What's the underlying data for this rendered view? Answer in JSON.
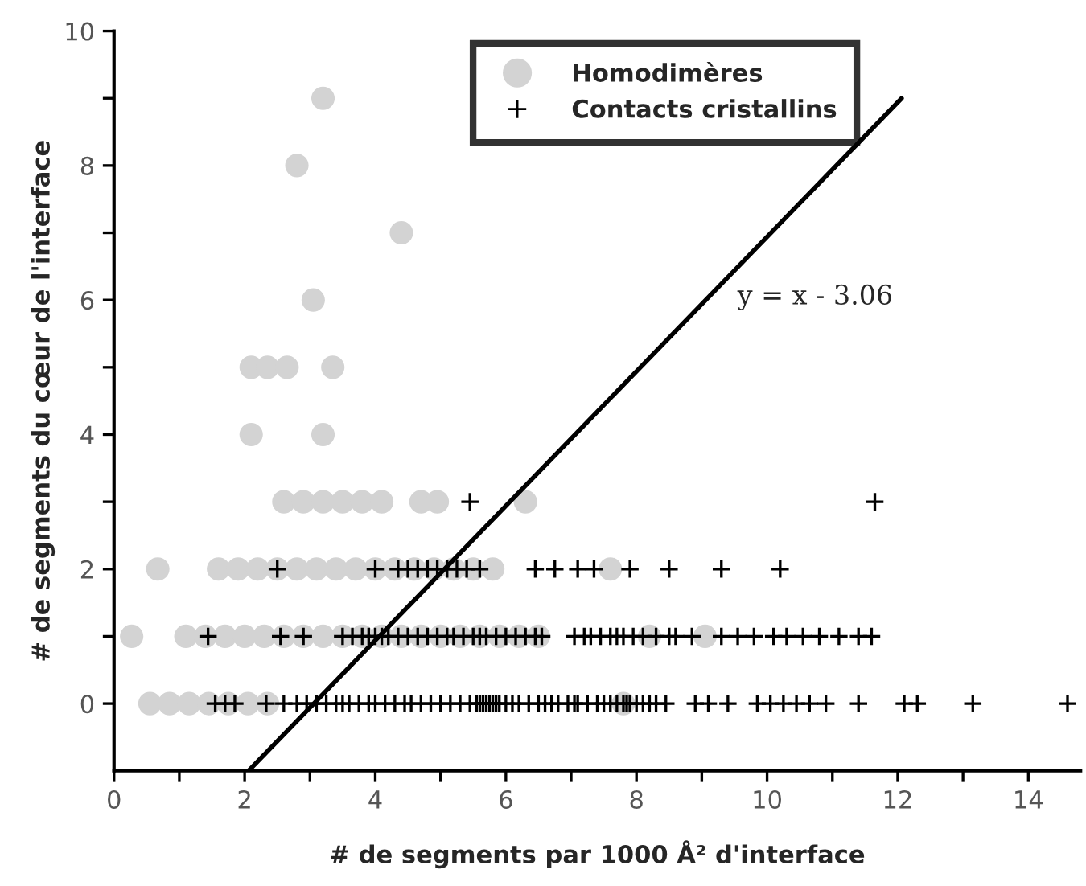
{
  "chart_data": {
    "type": "scatter",
    "xlabel": "# de segments par 1000 Å² d'interface",
    "ylabel": "# de segments du cœur de l'interface",
    "xlim": [
      0,
      14.8
    ],
    "ylim": [
      -1,
      10
    ],
    "xticks": [
      0,
      {
        "value": 1,
        "label": null
      },
      2,
      {
        "value": 3,
        "label": null
      },
      4,
      {
        "value": 5,
        "label": null
      },
      6,
      {
        "value": 7,
        "label": null
      },
      8,
      {
        "value": 9,
        "label": null
      },
      10,
      {
        "value": 11,
        "label": null
      },
      12,
      {
        "value": 13,
        "label": null
      },
      14
    ],
    "yticks": [
      0,
      {
        "value": 1,
        "label": null
      },
      2,
      {
        "value": 3,
        "label": null
      },
      4,
      {
        "value": 5,
        "label": null
      },
      6,
      {
        "value": 7,
        "label": null
      },
      8,
      {
        "value": 9,
        "label": null
      },
      10
    ],
    "grid": false,
    "legend": "top",
    "annotations": [
      "y = x - 3.06"
    ],
    "series": [
      {
        "name": "Homodimères",
        "color": "#d3d3d3",
        "marker": "circle",
        "x": [
          0.55,
          0.85,
          1.15,
          1.45,
          1.75,
          2.05,
          2.35,
          7.8,
          0.27,
          1.1,
          1.4,
          1.7,
          2.0,
          2.3,
          2.6,
          2.9,
          3.2,
          3.5,
          3.8,
          4.1,
          4.4,
          4.7,
          5.0,
          5.3,
          5.6,
          5.9,
          6.2,
          6.5,
          8.2,
          9.05,
          0.67,
          1.6,
          1.9,
          2.2,
          2.5,
          2.8,
          3.1,
          3.4,
          3.7,
          4.0,
          4.3,
          4.6,
          4.9,
          5.2,
          5.5,
          5.8,
          7.6,
          2.6,
          2.9,
          3.2,
          3.5,
          3.8,
          4.1,
          4.7,
          4.95,
          6.3,
          2.1,
          3.2,
          2.1,
          2.35,
          2.65,
          3.35,
          3.05,
          4.4,
          2.8,
          3.2
        ],
        "values": [
          0,
          0,
          0,
          0,
          0,
          0,
          0,
          0,
          1,
          1,
          1,
          1,
          1,
          1,
          1,
          1,
          1,
          1,
          1,
          1,
          1,
          1,
          1,
          1,
          1,
          1,
          1,
          1,
          1,
          1,
          2,
          2,
          2,
          2,
          2,
          2,
          2,
          2,
          2,
          2,
          2,
          2,
          2,
          2,
          2,
          2,
          2,
          3,
          3,
          3,
          3,
          3,
          3,
          3,
          3,
          3,
          4,
          4,
          5,
          5,
          5,
          5,
          6,
          7,
          8,
          9
        ]
      },
      {
        "name": "Contacts cristallins",
        "color": "#000000",
        "marker": "cross",
        "x": [
          1.55,
          1.7,
          1.85,
          2.33,
          2.6,
          2.8,
          2.95,
          3.1,
          3.25,
          3.4,
          3.5,
          3.6,
          3.75,
          3.9,
          4.0,
          4.15,
          4.3,
          4.45,
          4.55,
          4.7,
          4.85,
          5.0,
          5.15,
          5.3,
          5.45,
          5.55,
          5.6,
          5.65,
          5.7,
          5.75,
          5.8,
          5.85,
          5.9,
          6.0,
          6.1,
          6.2,
          6.35,
          6.5,
          6.6,
          6.7,
          6.8,
          6.95,
          7.05,
          7.1,
          7.25,
          7.4,
          7.5,
          7.6,
          7.7,
          7.8,
          7.85,
          7.9,
          8.0,
          8.1,
          8.2,
          8.3,
          8.45,
          8.9,
          9.1,
          9.4,
          9.85,
          10.05,
          10.25,
          10.45,
          10.65,
          10.9,
          11.4,
          12.1,
          12.3,
          13.15,
          14.6,
          1.44,
          2.55,
          2.9,
          3.5,
          3.65,
          3.8,
          3.9,
          4.0,
          4.1,
          4.2,
          4.35,
          4.5,
          4.65,
          4.8,
          4.95,
          5.1,
          5.2,
          5.35,
          5.5,
          5.6,
          5.7,
          5.85,
          6.0,
          6.15,
          6.3,
          6.45,
          6.55,
          7.05,
          7.2,
          7.3,
          7.45,
          7.6,
          7.7,
          7.8,
          7.95,
          8.1,
          8.3,
          8.5,
          8.6,
          8.85,
          9.3,
          9.55,
          9.8,
          10.1,
          10.3,
          10.55,
          10.8,
          11.1,
          11.4,
          11.6,
          2.5,
          4.0,
          4.35,
          4.5,
          4.65,
          4.8,
          4.95,
          5.1,
          5.25,
          5.4,
          5.6,
          6.45,
          6.75,
          7.1,
          7.35,
          7.9,
          8.5,
          9.3,
          10.2,
          5.45,
          11.65
        ],
        "values": [
          0,
          0,
          0,
          0,
          0,
          0,
          0,
          0,
          0,
          0,
          0,
          0,
          0,
          0,
          0,
          0,
          0,
          0,
          0,
          0,
          0,
          0,
          0,
          0,
          0,
          0,
          0,
          0,
          0,
          0,
          0,
          0,
          0,
          0,
          0,
          0,
          0,
          0,
          0,
          0,
          0,
          0,
          0,
          0,
          0,
          0,
          0,
          0,
          0,
          0,
          0,
          0,
          0,
          0,
          0,
          0,
          0,
          0,
          0,
          0,
          0,
          0,
          0,
          0,
          0,
          0,
          0,
          0,
          0,
          0,
          0,
          1,
          1,
          1,
          1,
          1,
          1,
          1,
          1,
          1,
          1,
          1,
          1,
          1,
          1,
          1,
          1,
          1,
          1,
          1,
          1,
          1,
          1,
          1,
          1,
          1,
          1,
          1,
          1,
          1,
          1,
          1,
          1,
          1,
          1,
          1,
          1,
          1,
          1,
          1,
          1,
          1,
          1,
          1,
          1,
          1,
          1,
          1,
          1,
          1,
          1,
          2,
          2,
          2,
          2,
          2,
          2,
          2,
          2,
          2,
          2,
          2,
          2,
          2,
          2,
          2,
          2,
          2,
          2,
          2,
          3,
          3
        ]
      },
      {
        "type": "line",
        "color": "#000000",
        "line_style": "solid",
        "x": [
          2.06,
          12.06
        ],
        "values": [
          -1,
          9
        ]
      }
    ]
  }
}
